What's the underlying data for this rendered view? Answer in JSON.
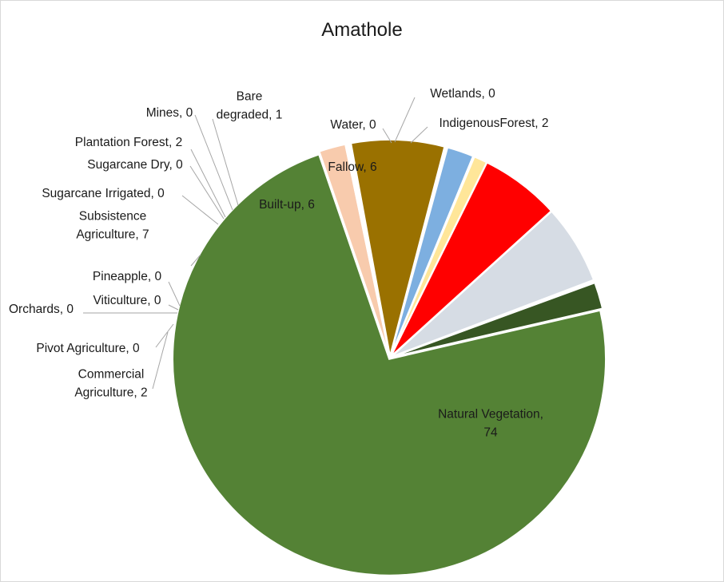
{
  "chart_data": {
    "type": "pie",
    "title": "Amathole",
    "legend": "none",
    "slices": [
      {
        "label": [
          "Natural Vegetation,",
          "74"
        ],
        "value": 74,
        "color": "#548235"
      },
      {
        "label": [
          "Commercial",
          "Agriculture, 2"
        ],
        "value": 2,
        "color": "#f8cbad"
      },
      {
        "label": [
          "Pivot  Agriculture, 0"
        ],
        "value": 0,
        "color": "#e2e2e2"
      },
      {
        "label": [
          "Orchards, 0"
        ],
        "value": 0,
        "color": "#d0d0d0"
      },
      {
        "label": [
          "Viticulture, 0"
        ],
        "value": 0,
        "color": "#c9c9c9"
      },
      {
        "label": [
          "Pineapple, 0"
        ],
        "value": 0,
        "color": "#ffd966"
      },
      {
        "label": [
          "Subsistence",
          "Agriculture, 7"
        ],
        "value": 7,
        "color": "#9a7100"
      },
      {
        "label": [
          "Sugarcane Irrigated, 0"
        ],
        "value": 0,
        "color": "#8faadc"
      },
      {
        "label": [
          "Sugarcane Dry, 0"
        ],
        "value": 0,
        "color": "#a9d18e"
      },
      {
        "label": [
          "Plantation Forest, 2"
        ],
        "value": 2,
        "color": "#7dafe0"
      },
      {
        "label": [
          "Mines, 0"
        ],
        "value": 0,
        "color": "#7f7f7f"
      },
      {
        "label": [
          "Bare",
          "degraded, 1"
        ],
        "value": 1,
        "color": "#ffe699"
      },
      {
        "label": [
          "Built-up, 6"
        ],
        "value": 6,
        "color": "#ff0000"
      },
      {
        "label": [
          "Fallow, 6"
        ],
        "value": 6,
        "color": "#d6dce4"
      },
      {
        "label": [
          "Water, 0"
        ],
        "value": 0,
        "color": "#1f4e79"
      },
      {
        "label": [
          "Wetlands, 0"
        ],
        "value": 0,
        "color": "#9dc3e6"
      },
      {
        "label": [
          "IndigenousForest, 2"
        ],
        "value": 2,
        "color": "#375623"
      }
    ]
  }
}
